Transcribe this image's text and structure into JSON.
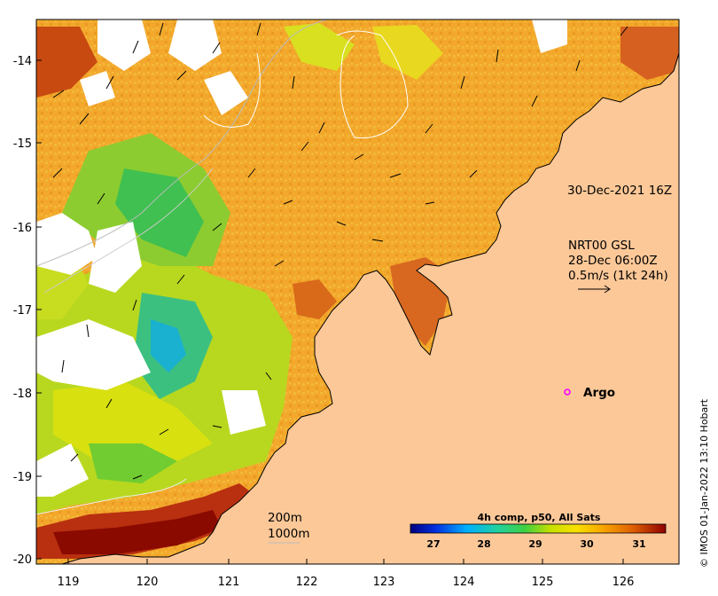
{
  "map": {
    "region": "Kimberley coast, NW Australia",
    "lon_ticks": [
      "119",
      "120",
      "121",
      "122",
      "123",
      "124",
      "125",
      "126"
    ],
    "lat_ticks": [
      "-14",
      "-15",
      "-16",
      "-17",
      "-18",
      "-19",
      "-20"
    ],
    "colors": {
      "land": "#fcc898",
      "ocean_base": "#f0a52a",
      "coast": "#000000"
    }
  },
  "annotations": {
    "timestamp": "30-Dec-2021 16Z",
    "current_model": "NRT00 GSL",
    "current_time": "28-Dec 06:00Z",
    "scale_speed": "0.5m/s (1kt 24h)",
    "depth_200": "200m",
    "depth_1000": "1000m",
    "argo_label": "Argo"
  },
  "colorbar": {
    "title": "4h comp, p50, All Sats",
    "ticks": [
      "27",
      "28",
      "29",
      "30",
      "31"
    ],
    "colors": [
      "#00007f",
      "#0040ff",
      "#00c0ff",
      "#20d080",
      "#80e020",
      "#f0f000",
      "#f0b000",
      "#e07000",
      "#c03000",
      "#800000"
    ]
  },
  "credit": "© IMOS 01-Jan-2022 13:10 Hobart"
}
